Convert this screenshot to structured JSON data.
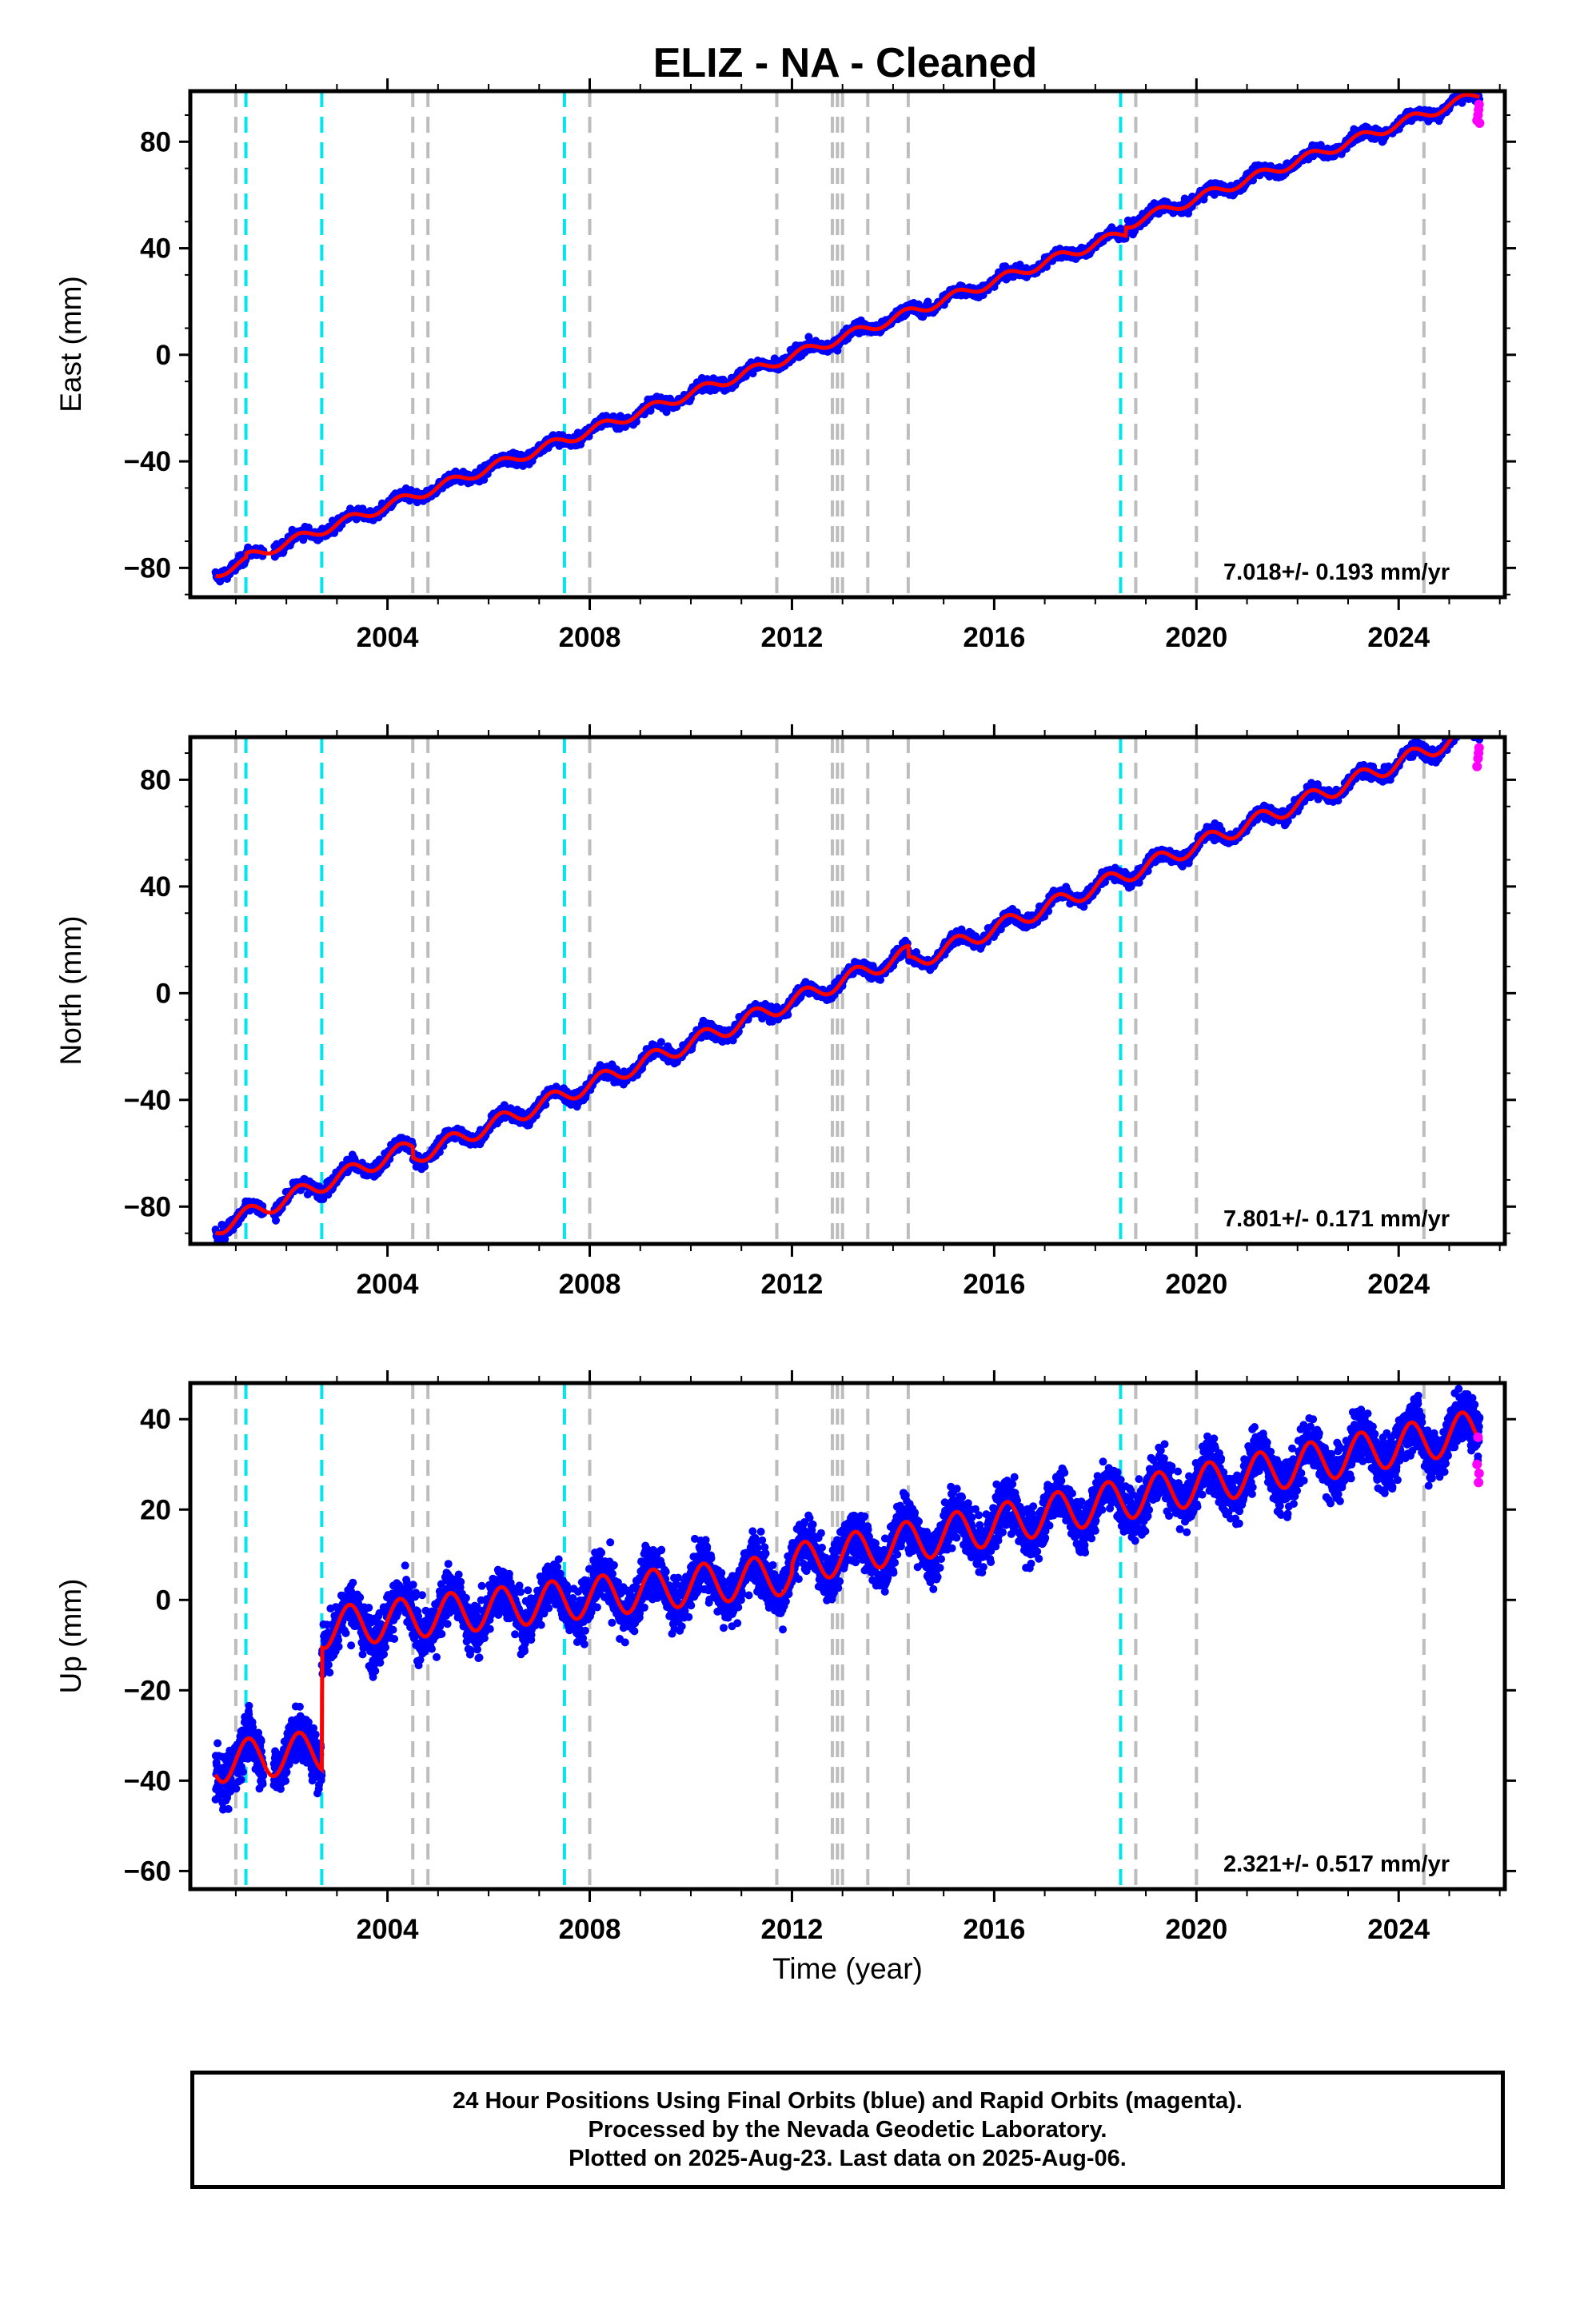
{
  "title": "ELIZ  - NA - Cleaned",
  "colors": {
    "final_orbits": "#0000ff",
    "rapid_orbits": "#ff00ff",
    "model": "#ff0000",
    "equipment_change": "#bdbdbd",
    "earthquake": "#00e5ee"
  },
  "footer": {
    "line1": "24 Hour Positions Using Final Orbits (blue) and Rapid Orbits (magenta).",
    "line2": "Processed by the Nevada Geodetic Laboratory.",
    "line3": "Plotted on 2025-Aug-23. Last data on 2025-Aug-06."
  },
  "chart_data": [
    {
      "type": "scatter",
      "component": "East",
      "ylabel": "East (mm)",
      "xlabel": "",
      "rate_label": "7.018+/- 0.193 mm/yr",
      "xlim": [
        2000.1,
        2026.1
      ],
      "ylim": [
        -91,
        99
      ],
      "yticks": [
        -80,
        -40,
        0,
        40,
        80
      ],
      "xticks": [
        2004,
        2008,
        2012,
        2016,
        2020,
        2024
      ],
      "grid": false,
      "data_start": 2000.6,
      "data_end": 2025.6,
      "model": {
        "x0": 2000.6,
        "y0": -82,
        "slope": 7.018,
        "annual_amp": 1.8,
        "offsets": [
          [
            2001.2,
            1.5
          ],
          [
            2018.6,
            3.0
          ]
        ]
      },
      "scatter_noise": 1.5,
      "rapid_points": [
        [
          2025.55,
          88
        ],
        [
          2025.57,
          90
        ],
        [
          2025.58,
          92
        ],
        [
          2025.59,
          94
        ],
        [
          2025.6,
          87
        ]
      ],
      "equipment_changes": [
        2001.0,
        2004.5,
        2004.8,
        2008.0,
        2011.7,
        2012.8,
        2012.9,
        2013.0,
        2013.5,
        2014.3,
        2018.8,
        2020.0,
        2024.5
      ],
      "earthquakes": [
        2001.2,
        2002.7,
        2007.5,
        2018.5
      ]
    },
    {
      "type": "scatter",
      "component": "North",
      "ylabel": "North (mm)",
      "xlabel": "",
      "rate_label": "7.801+/- 0.171 mm/yr",
      "xlim": [
        2000.1,
        2026.1
      ],
      "ylim": [
        -94,
        96
      ],
      "yticks": [
        -80,
        -40,
        0,
        40,
        80
      ],
      "xticks": [
        2004,
        2008,
        2012,
        2016,
        2020,
        2024
      ],
      "grid": false,
      "data_start": 2000.6,
      "data_end": 2025.6,
      "model": {
        "x0": 2000.6,
        "y0": -88,
        "slope": 7.801,
        "annual_amp": 3.0,
        "offsets": [
          [
            2004.5,
            -4.0
          ],
          [
            2014.3,
            -4.0
          ]
        ]
      },
      "scatter_noise": 1.8,
      "rapid_points": [
        [
          2025.55,
          85
        ],
        [
          2025.57,
          88
        ],
        [
          2025.58,
          90
        ],
        [
          2025.59,
          92
        ]
      ],
      "equipment_changes": [
        2001.0,
        2004.5,
        2004.8,
        2008.0,
        2011.7,
        2012.8,
        2012.9,
        2013.0,
        2013.5,
        2014.3,
        2018.8,
        2020.0,
        2024.5
      ],
      "earthquakes": [
        2001.2,
        2002.7,
        2007.5,
        2018.5
      ]
    },
    {
      "type": "scatter",
      "component": "Up",
      "ylabel": "Up (mm)",
      "xlabel": "Time (year)",
      "rate_label": "2.321+/- 0.517 mm/yr",
      "xlim": [
        2000.1,
        2026.1
      ],
      "ylim": [
        -64,
        48
      ],
      "yticks": [
        -60,
        -40,
        -20,
        0,
        20,
        40
      ],
      "xticks": [
        2004,
        2008,
        2012,
        2016,
        2020,
        2024
      ],
      "grid": false,
      "data_start": 2000.6,
      "data_end": 2025.6,
      "model": {
        "x0": 2000.6,
        "y0": -36,
        "slope": 1.3,
        "annual_amp": 4.5,
        "offsets": [
          [
            2002.7,
            27.0
          ],
          [
            2012.0,
            2.0
          ]
        ],
        "late_slope_after": 2012.0,
        "late_slope": 2.2
      },
      "scatter_noise": 4.0,
      "rapid_points": [
        [
          2025.55,
          30
        ],
        [
          2025.57,
          36
        ],
        [
          2025.58,
          26
        ],
        [
          2025.59,
          28
        ]
      ],
      "equipment_changes": [
        2001.0,
        2004.5,
        2004.8,
        2008.0,
        2011.7,
        2012.8,
        2012.9,
        2013.0,
        2013.5,
        2014.3,
        2018.8,
        2020.0,
        2024.5
      ],
      "earthquakes": [
        2001.2,
        2002.7,
        2007.5,
        2018.5
      ]
    }
  ]
}
